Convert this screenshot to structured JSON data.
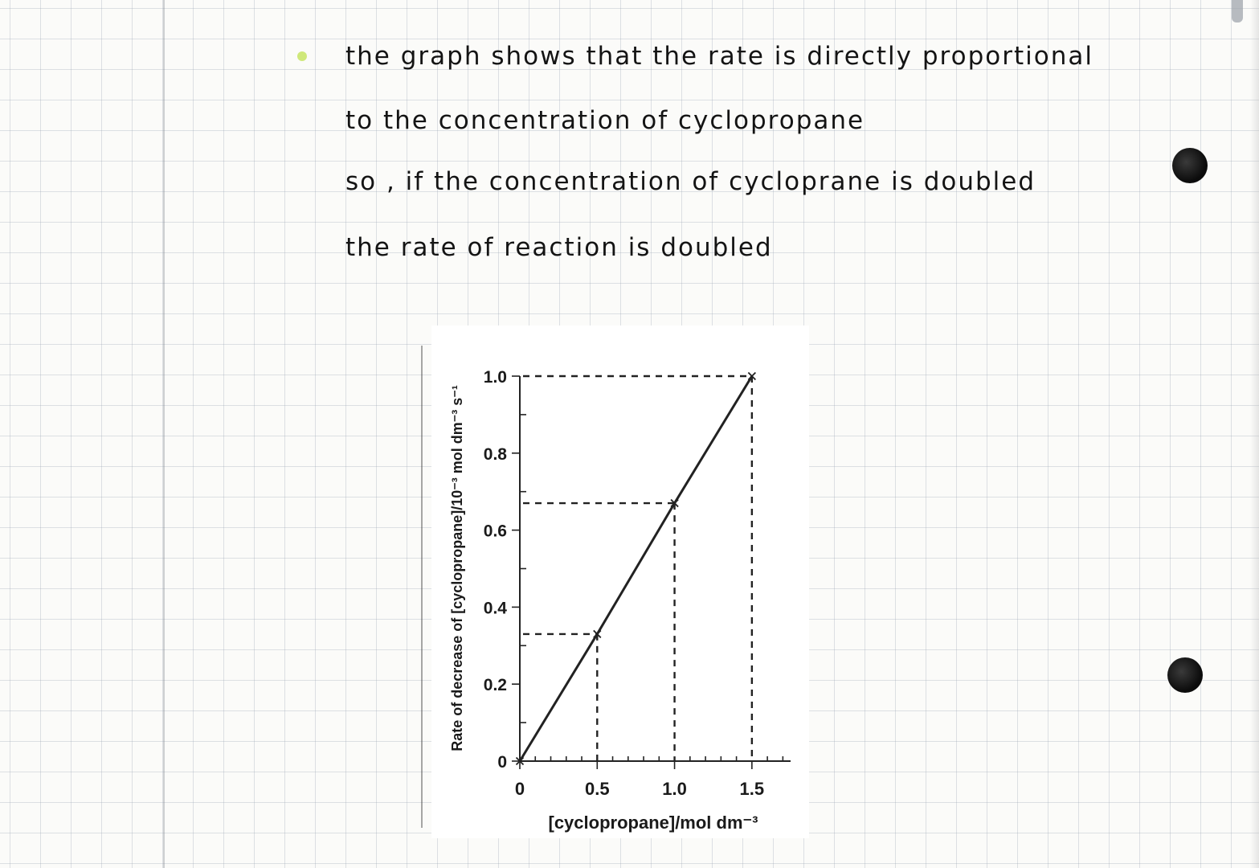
{
  "notes": {
    "lines": [
      "the graph shows that the rate is directly proportional",
      "to the concentration of cyclopropane",
      "so , if the concentration of cycloprane is doubled",
      "the rate of reaction is doubled"
    ]
  },
  "chart_data": {
    "type": "line",
    "title": "",
    "xlabel": "[cyclopropane]/mol dm⁻³",
    "ylabel": "Rate of decrease of [cyclopropane]/10⁻³ mol dm⁻³ s⁻¹",
    "xlim": [
      0,
      1.75
    ],
    "ylim": [
      0,
      1.0
    ],
    "x_ticks": [
      "0",
      "0.5",
      "1.0",
      "1.5"
    ],
    "y_ticks": [
      "0",
      "0.2",
      "0.4",
      "0.6",
      "0.8",
      "1.0"
    ],
    "grid": false,
    "series": [
      {
        "x": [
          0,
          0.5,
          1.0,
          1.5
        ],
        "y": [
          0,
          0.33,
          0.67,
          1.0
        ],
        "color": "#222222"
      }
    ],
    "guide_lines": "dashed",
    "marker": "x"
  },
  "colors": {
    "ink": "#141414",
    "highlighter": "#cfe87a",
    "grid": "#96a0af"
  }
}
